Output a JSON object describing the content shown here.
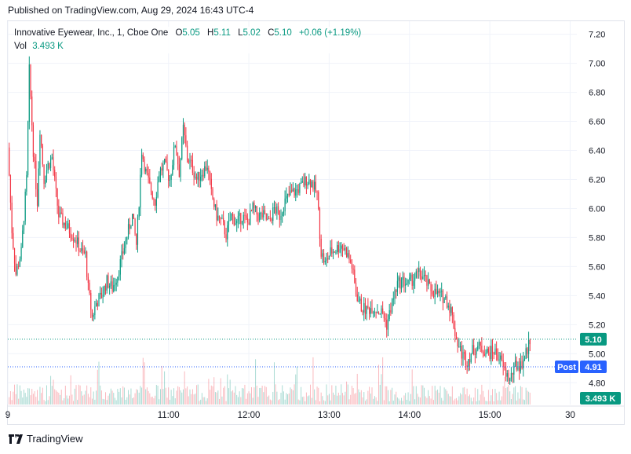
{
  "header": {
    "published": "Published on TradingView.com, Aug 29, 2024 16:43 UTC-4"
  },
  "legend": {
    "symbol": "Innovative Eyewear, Inc., 1, Cboe One",
    "open_label": "O",
    "open": "5.05",
    "high_label": "H",
    "high": "5.11",
    "low_label": "L",
    "low": "5.02",
    "close_label": "C",
    "close": "5.10",
    "change": "+0.06 (+1.19%)",
    "vol_label": "Vol",
    "vol": "3.493 K"
  },
  "footer": {
    "brand": "TradingView"
  },
  "colors": {
    "up": "#089981",
    "down": "#f23645",
    "post": "#2962ff",
    "grid": "#f0f3fa"
  },
  "chart_data": {
    "type": "candlestick",
    "title": "Innovative Eyewear, Inc., 1, Cboe One",
    "y_ticks": [
      "7.20",
      "7.00",
      "6.80",
      "6.60",
      "6.40",
      "6.20",
      "6.00",
      "5.80",
      "5.60",
      "5.40",
      "5.20",
      "5.00",
      "4.80"
    ],
    "ylim": [
      4.65,
      7.29
    ],
    "x_ticks": [
      "9",
      "11:00",
      "12:00",
      "13:00",
      "14:00",
      "15:00",
      "30"
    ],
    "x_tick_minutes": [
      0,
      120,
      180,
      240,
      300,
      360,
      420
    ],
    "xlim_minutes": [
      0,
      425
    ],
    "price_path": [
      [
        0,
        6.42
      ],
      [
        3,
        5.85
      ],
      [
        6,
        5.55
      ],
      [
        10,
        5.7
      ],
      [
        14,
        6.2
      ],
      [
        16,
        6.95
      ],
      [
        19,
        6.4
      ],
      [
        22,
        6.05
      ],
      [
        24,
        6.55
      ],
      [
        27,
        6.2
      ],
      [
        30,
        6.3
      ],
      [
        33,
        6.35
      ],
      [
        36,
        6.1
      ],
      [
        38,
        5.95
      ],
      [
        42,
        5.9
      ],
      [
        46,
        5.85
      ],
      [
        50,
        5.8
      ],
      [
        55,
        5.7
      ],
      [
        58,
        5.68
      ],
      [
        60,
        5.45
      ],
      [
        63,
        5.25
      ],
      [
        66,
        5.35
      ],
      [
        70,
        5.4
      ],
      [
        74,
        5.5
      ],
      [
        78,
        5.45
      ],
      [
        82,
        5.55
      ],
      [
        86,
        5.7
      ],
      [
        90,
        5.85
      ],
      [
        93,
        5.95
      ],
      [
        96,
        5.75
      ],
      [
        98,
        6.05
      ],
      [
        100,
        6.4
      ],
      [
        103,
        6.25
      ],
      [
        106,
        6.15
      ],
      [
        110,
        6.05
      ],
      [
        113,
        6.25
      ],
      [
        117,
        6.3
      ],
      [
        121,
        6.2
      ],
      [
        125,
        6.45
      ],
      [
        128,
        6.25
      ],
      [
        131,
        6.55
      ],
      [
        134,
        6.35
      ],
      [
        137,
        6.3
      ],
      [
        141,
        6.2
      ],
      [
        145,
        6.25
      ],
      [
        149,
        6.3
      ],
      [
        152,
        6.1
      ],
      [
        156,
        5.95
      ],
      [
        160,
        5.9
      ],
      [
        163,
        5.82
      ],
      [
        167,
        5.95
      ],
      [
        171,
        5.9
      ],
      [
        175,
        5.95
      ],
      [
        179,
        5.9
      ],
      [
        183,
        6.0
      ],
      [
        187,
        5.95
      ],
      [
        191,
        5.95
      ],
      [
        195,
        5.9
      ],
      [
        199,
        6.0
      ],
      [
        203,
        5.95
      ],
      [
        207,
        6.05
      ],
      [
        211,
        6.1
      ],
      [
        215,
        6.12
      ],
      [
        219,
        6.15
      ],
      [
        223,
        6.2
      ],
      [
        227,
        6.18
      ],
      [
        231,
        6.1
      ],
      [
        234,
        5.7
      ],
      [
        237,
        5.62
      ],
      [
        241,
        5.7
      ],
      [
        245,
        5.72
      ],
      [
        249,
        5.75
      ],
      [
        253,
        5.7
      ],
      [
        257,
        5.6
      ],
      [
        260,
        5.42
      ],
      [
        264,
        5.32
      ],
      [
        268,
        5.3
      ],
      [
        272,
        5.32
      ],
      [
        276,
        5.3
      ],
      [
        280,
        5.28
      ],
      [
        283,
        5.2
      ],
      [
        287,
        5.35
      ],
      [
        291,
        5.48
      ],
      [
        295,
        5.5
      ],
      [
        299,
        5.48
      ],
      [
        303,
        5.52
      ],
      [
        307,
        5.55
      ],
      [
        311,
        5.52
      ],
      [
        315,
        5.45
      ],
      [
        319,
        5.42
      ],
      [
        323,
        5.4
      ],
      [
        327,
        5.38
      ],
      [
        331,
        5.3
      ],
      [
        335,
        5.1
      ],
      [
        339,
        5.0
      ],
      [
        343,
        4.95
      ],
      [
        347,
        5.02
      ],
      [
        351,
        5.05
      ],
      [
        355,
        5.03
      ],
      [
        359,
        5.0
      ],
      [
        363,
        5.02
      ],
      [
        367,
        4.98
      ],
      [
        371,
        4.88
      ],
      [
        375,
        4.82
      ],
      [
        379,
        4.92
      ],
      [
        383,
        4.92
      ],
      [
        387,
        5.0
      ],
      [
        390,
        5.1
      ]
    ],
    "last_price": "5.10",
    "post_label": "Post",
    "post_price": "4.91",
    "volume_label": "3.493 K"
  }
}
